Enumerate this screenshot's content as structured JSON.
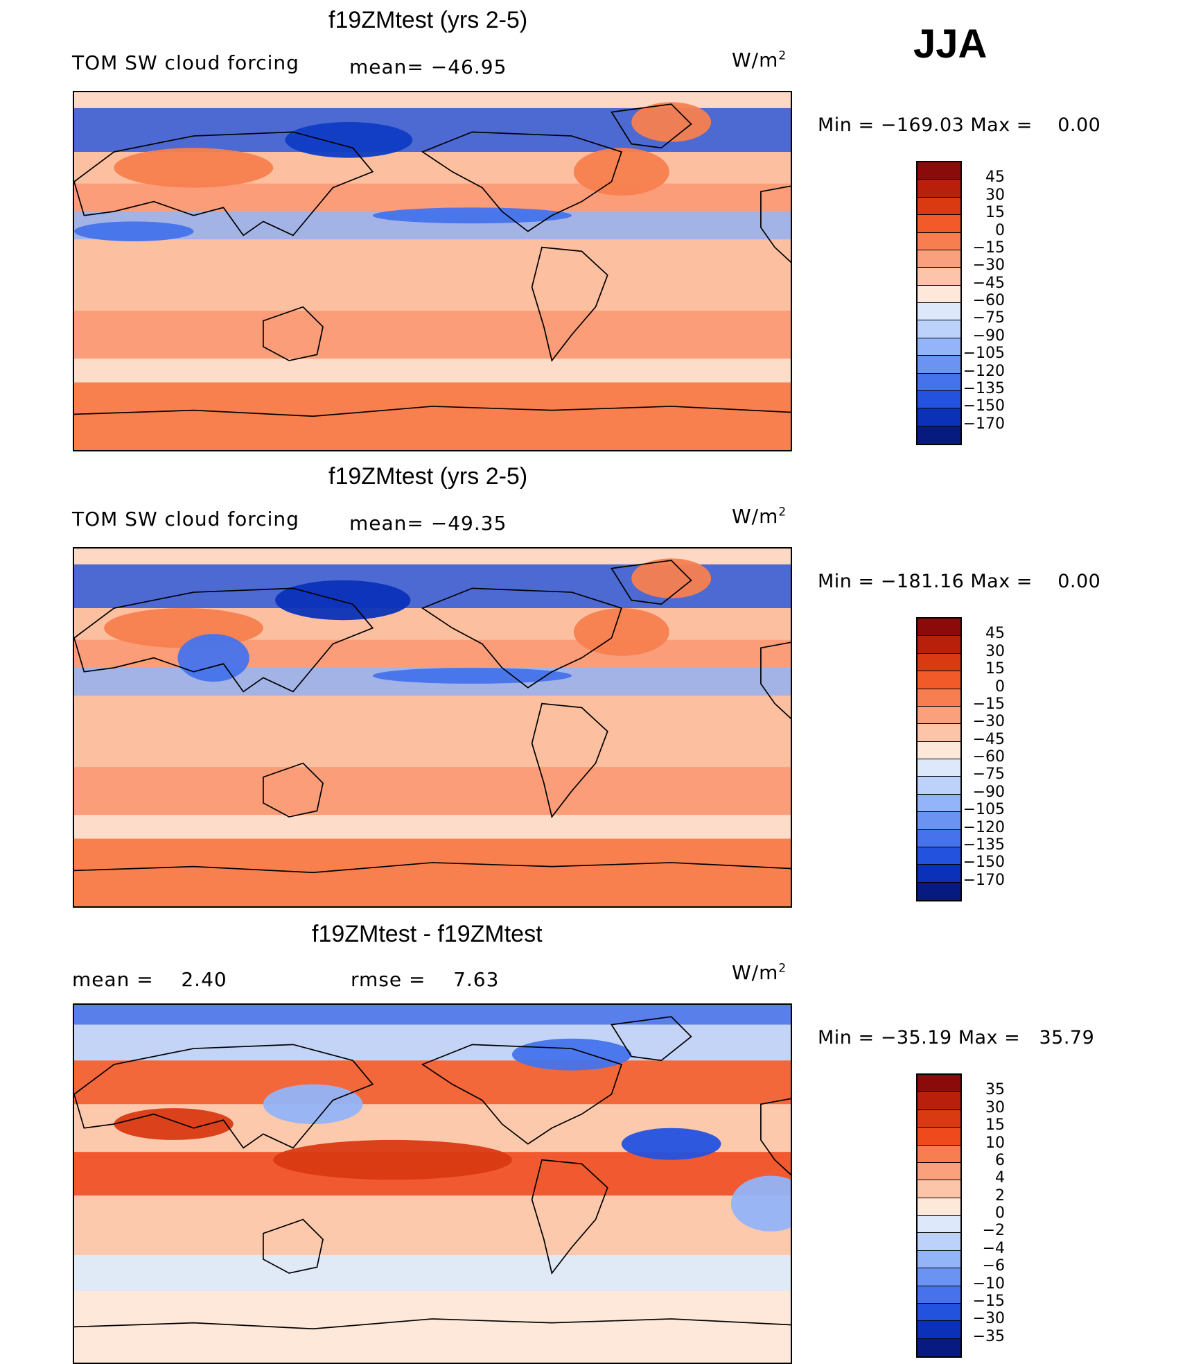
{
  "season": "JJA",
  "units_label": "W/m",
  "units_sup": "2",
  "panels": [
    {
      "title": "f19ZMtest (yrs 2-5)",
      "left_label": "TOM SW cloud forcing",
      "center_label": "mean= −46.95",
      "minmax": "Min = −169.03 Max =    0.00"
    },
    {
      "title": "f19ZMtest (yrs 2-5)",
      "left_label": "TOM SW cloud forcing",
      "center_label": "mean= −49.35",
      "minmax": "Min = −181.16 Max =    0.00"
    },
    {
      "title": "f19ZMtest - f19ZMtest",
      "left_label": "mean =    2.40",
      "center_label": "rmse =    7.63",
      "minmax": "Min = −35.19 Max =   35.79"
    }
  ],
  "chart_data": [
    {
      "type": "heatmap",
      "title": "f19ZMtest (yrs 2-5)",
      "subtitle": "TOM SW cloud forcing",
      "mean": -46.95,
      "min": -169.03,
      "max": 0.0,
      "units": "W/m2",
      "colorbar_levels": [
        "45",
        "30",
        "15",
        "0",
        "−15",
        "−30",
        "−45",
        "−60",
        "−75",
        "−90",
        "−105",
        "−120",
        "−135",
        "−150",
        "−170"
      ],
      "colorbar_colors": [
        "#8b0a0a",
        "#b8200c",
        "#d93a12",
        "#f25a2a",
        "#f77f4f",
        "#faa07c",
        "#fcc5a9",
        "#fde8d9",
        "#dde9fa",
        "#bcd2fb",
        "#93b4f8",
        "#6b94f2",
        "#4673ec",
        "#2352df",
        "#0a31b8",
        "#061a80"
      ]
    },
    {
      "type": "heatmap",
      "title": "f19ZMtest (yrs 2-5)",
      "subtitle": "TOM SW cloud forcing",
      "mean": -49.35,
      "min": -181.16,
      "max": 0.0,
      "units": "W/m2",
      "colorbar_levels": [
        "45",
        "30",
        "15",
        "0",
        "−15",
        "−30",
        "−45",
        "−60",
        "−75",
        "−90",
        "−105",
        "−120",
        "−135",
        "−150",
        "−170"
      ],
      "colorbar_colors": [
        "#8b0a0a",
        "#b8200c",
        "#d93a12",
        "#f25a2a",
        "#f77f4f",
        "#faa07c",
        "#fcc5a9",
        "#fde8d9",
        "#dde9fa",
        "#bcd2fb",
        "#93b4f8",
        "#6b94f2",
        "#4673ec",
        "#2352df",
        "#0a31b8",
        "#061a80"
      ]
    },
    {
      "type": "heatmap",
      "title": "f19ZMtest - f19ZMtest",
      "mean": 2.4,
      "rmse": 7.63,
      "min": -35.19,
      "max": 35.79,
      "units": "W/m2",
      "colorbar_levels": [
        "35",
        "30",
        "15",
        "10",
        "6",
        "4",
        "2",
        "0",
        "−2",
        "−4",
        "−6",
        "−10",
        "−15",
        "−30",
        "−35"
      ],
      "colorbar_colors": [
        "#8b0a0a",
        "#b8200c",
        "#d93a12",
        "#ef4a1e",
        "#f77f4f",
        "#faa07c",
        "#fcc5a9",
        "#fde8d9",
        "#dde9fa",
        "#bcd2fb",
        "#93b4f8",
        "#6b94f2",
        "#4673ec",
        "#2352df",
        "#0a31b8",
        "#061a80"
      ]
    }
  ]
}
